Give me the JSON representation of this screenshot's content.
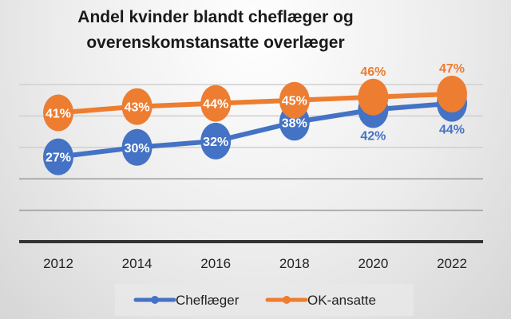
{
  "chart_data": {
    "type": "line",
    "title": [
      "Andel kvinder blandt cheflæger og",
      "overenskomstansatte overlæger"
    ],
    "x": [
      "2012",
      "2014",
      "2016",
      "2018",
      "2020",
      "2022"
    ],
    "ylim": [
      0,
      50
    ],
    "yticks_hidden": true,
    "grid": true,
    "legend_position": "bottom",
    "series": [
      {
        "name": "Cheflæger",
        "color": "#4472C4",
        "values": [
          27,
          30,
          32,
          38,
          42,
          44
        ],
        "labels": [
          "27%",
          "30%",
          "32%",
          "38%",
          "42%",
          "44%"
        ]
      },
      {
        "name": "OK-ansatte",
        "color": "#ED7D31",
        "values": [
          41,
          43,
          44,
          45,
          46,
          47
        ],
        "labels": [
          "41%",
          "43%",
          "44%",
          "45%",
          "46%",
          "47%"
        ]
      }
    ]
  }
}
